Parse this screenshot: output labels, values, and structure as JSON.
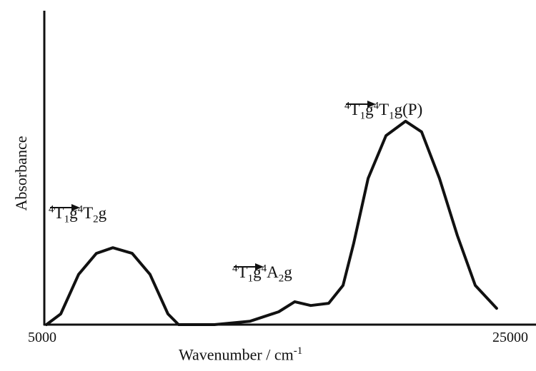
{
  "chart_data": {
    "type": "line",
    "x_label": {
      "text": "Wavenumber / cm",
      "sup": "-1"
    },
    "y_label": "Absorbance",
    "x": [
      5000,
      5615,
      6385,
      7150,
      7860,
      8690,
      9460,
      10230,
      10690,
      12230,
      13770,
      15000,
      15690,
      16380,
      17150,
      17770,
      18230,
      18850,
      19620,
      20460,
      21150,
      21920,
      22690,
      23460,
      24380
    ],
    "values": [
      0,
      0.034,
      0.16,
      0.227,
      0.245,
      0.227,
      0.16,
      0.034,
      0,
      0,
      0.011,
      0.041,
      0.073,
      0.061,
      0.068,
      0.125,
      0.26,
      0.466,
      0.602,
      0.648,
      0.614,
      0.466,
      0.284,
      0.125,
      0.052
    ],
    "color": "#111111",
    "xlim": [
      5000,
      25000
    ],
    "xticks": [
      5000,
      25000
    ],
    "ylim": [
      0,
      1
    ],
    "annotations": [
      {
        "from": {
          "mult": "4",
          "term": "T",
          "sub": "1",
          "sym": "g"
        },
        "to": {
          "mult": "4",
          "term": "T",
          "sub": "2",
          "sym": "g"
        }
      },
      {
        "from": {
          "mult": "4",
          "term": "T",
          "sub": "1",
          "sym": "g"
        },
        "to": {
          "mult": "4",
          "term": "A",
          "sub": "2",
          "sym": "g"
        }
      },
      {
        "from": {
          "mult": "4",
          "term": "T",
          "sub": "1",
          "sym": "g"
        },
        "to": {
          "mult": "4",
          "term": "T",
          "sub": "1",
          "sym": "g(P)"
        }
      }
    ]
  }
}
